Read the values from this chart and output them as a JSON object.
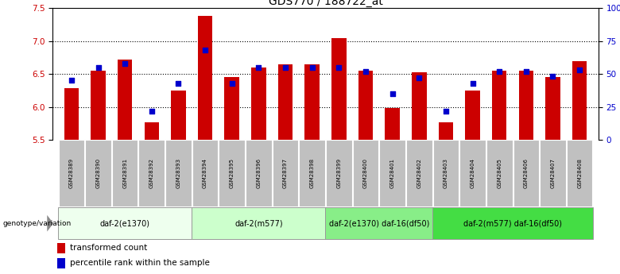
{
  "title": "GDS770 / 188722_at",
  "samples": [
    "GSM28389",
    "GSM28390",
    "GSM28391",
    "GSM28392",
    "GSM28393",
    "GSM28394",
    "GSM28395",
    "GSM28396",
    "GSM28397",
    "GSM28398",
    "GSM28399",
    "GSM28400",
    "GSM28401",
    "GSM28402",
    "GSM28403",
    "GSM28404",
    "GSM28405",
    "GSM28406",
    "GSM28407",
    "GSM28408"
  ],
  "bar_values": [
    6.28,
    6.55,
    6.72,
    5.77,
    6.25,
    7.38,
    6.45,
    6.6,
    6.65,
    6.65,
    7.05,
    6.55,
    5.98,
    6.52,
    5.77,
    6.25,
    6.55,
    6.55,
    6.45,
    6.7
  ],
  "dot_values": [
    45,
    55,
    58,
    22,
    43,
    68,
    43,
    55,
    55,
    55,
    55,
    52,
    35,
    47,
    22,
    43,
    52,
    52,
    48,
    53
  ],
  "bar_color": "#cc0000",
  "dot_color": "#0000cc",
  "ylim_left": [
    5.5,
    7.5
  ],
  "ylim_right": [
    0,
    100
  ],
  "yticks_left": [
    5.5,
    6.0,
    6.5,
    7.0,
    7.5
  ],
  "yticks_right": [
    0,
    25,
    50,
    75,
    100
  ],
  "ytick_labels_right": [
    "0",
    "25",
    "50",
    "75",
    "100%"
  ],
  "groups": [
    {
      "label": "daf-2(e1370)",
      "start": 0,
      "end": 5
    },
    {
      "label": "daf-2(m577)",
      "start": 5,
      "end": 10
    },
    {
      "label": "daf-2(e1370) daf-16(df50)",
      "start": 10,
      "end": 14
    },
    {
      "label": "daf-2(m577) daf-16(df50)",
      "start": 14,
      "end": 20
    }
  ],
  "group_colors": [
    "#eeffee",
    "#ccffcc",
    "#88ee88",
    "#44dd44"
  ],
  "genotype_label": "genotype/variation",
  "legend_bar": "transformed count",
  "legend_dot": "percentile rank within the sample",
  "bar_width": 0.55,
  "tick_bg": "#c0c0c0",
  "gridline_vals": [
    6.0,
    6.5,
    7.0
  ],
  "title_fontsize": 10,
  "tick_fontsize": 7.5,
  "sample_fontsize": 5.0,
  "group_fontsize": 7.0,
  "legend_fontsize": 7.5
}
